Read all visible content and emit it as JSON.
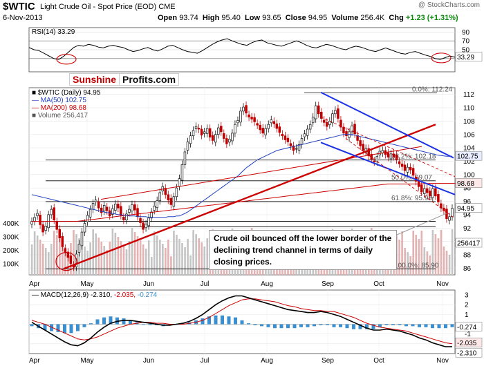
{
  "header": {
    "symbol": "$WTIC",
    "name": "Light Crude Oil - Spot Price (EOD)",
    "exchange": "CME",
    "date": "6-Nov-2013",
    "open_label": "Open",
    "open": "93.74",
    "high_label": "High",
    "high": "95.40",
    "low_label": "Low",
    "low": "93.65",
    "close_label": "Close",
    "close": "94.95",
    "volume_label": "Volume",
    "volume": "256.4K",
    "chg_label": "Chg",
    "chg": "+1.23 (+1.31%)",
    "brand": "@ StockCharts.com"
  },
  "logo": {
    "part1": "Sunshine",
    "part2": "Profits.com"
  },
  "callout": "Crude oil bounced off the lower border of the declining trend channel in terms of daily closing prices.",
  "colors": {
    "up": "#111111",
    "down": "#c00000",
    "ma50": "#1f3fbf",
    "ma200": "#cc0000",
    "trend_red": "#cc0000",
    "trend_blue": "#1a33e6",
    "volume": "#bbbbbb",
    "macd_hist": "#3a8fd0"
  },
  "chart_data": [
    {
      "type": "line",
      "title": "RSI(14) 33.29",
      "legend": "RSI(14) 33.29",
      "last_value": "33.29",
      "ylim": [
        0,
        100
      ],
      "y_ticks": [
        30,
        50,
        70,
        90
      ],
      "values": [
        55,
        50,
        48,
        42,
        36,
        30,
        28,
        35,
        45,
        55,
        60,
        58,
        62,
        60,
        56,
        54,
        58,
        60,
        57,
        55,
        50,
        46,
        48,
        52,
        55,
        50,
        47,
        52,
        58,
        60,
        55,
        50,
        46,
        44,
        42,
        48,
        55,
        62,
        68,
        72,
        75,
        70,
        66,
        62,
        60,
        66,
        70,
        72,
        66,
        63,
        60,
        58,
        62,
        66,
        70,
        66,
        60,
        56,
        54,
        58,
        62,
        60,
        56,
        52,
        50,
        55,
        58,
        56,
        52,
        48,
        46,
        50,
        54,
        50,
        46,
        42,
        40,
        44,
        46,
        42,
        38,
        35,
        30,
        28,
        32,
        36,
        33
      ]
    },
    {
      "type": "candlestick",
      "title": "$WTIC (Daily) 94.95",
      "legend": [
        {
          "name": "MA(50) 102.75",
          "color": "#1f3fbf"
        },
        {
          "name": "MA(200) 98.68",
          "color": "#cc0000"
        },
        {
          "name": "Volume 256,417",
          "color": "#888888"
        }
      ],
      "x_labels": [
        "Apr",
        "May",
        "Jun",
        "Jul",
        "Aug",
        "Sep",
        "Oct",
        "Nov"
      ],
      "ylim": [
        85,
        113
      ],
      "y_ticks": [
        86,
        88,
        90,
        92,
        94,
        96,
        98,
        100,
        102,
        104,
        106,
        108,
        110,
        112
      ],
      "value_badges": [
        {
          "label": "102.75",
          "value": 102.75
        },
        {
          "label": "98.68",
          "value": 98.68
        },
        {
          "label": "94.95",
          "value": 94.95
        }
      ],
      "volume_ticks": [
        "400K",
        "300K",
        "200K",
        "100K"
      ],
      "volume_last": "256417",
      "fib_levels": [
        {
          "label": "0.0%: 112.24",
          "value": 112.24
        },
        {
          "label": "38.2%: 102.18",
          "value": 102.18
        },
        {
          "label": "50.0%: 99.07",
          "value": 99.07
        },
        {
          "label": "61.8%: 95.96",
          "value": 95.96
        },
        {
          "label": "100.0%: 85.90",
          "value": 85.9
        }
      ],
      "close": [
        93.0,
        93.6,
        94.2,
        92.5,
        91.4,
        92.3,
        94.0,
        94.8,
        93.2,
        91.8,
        90.5,
        89.2,
        88.4,
        87.6,
        86.7,
        86.2,
        88.1,
        89.6,
        91.4,
        92.7,
        93.9,
        94.8,
        95.7,
        96.2,
        95.0,
        94.3,
        95.4,
        94.6,
        93.8,
        94.9,
        95.6,
        95.0,
        93.9,
        93.2,
        94.1,
        94.8,
        95.5,
        94.7,
        93.7,
        92.8,
        91.8,
        92.6,
        93.5,
        94.4,
        95.3,
        96.1,
        97.3,
        98.2,
        97.0,
        96.2,
        95.5,
        96.7,
        98.0,
        99.4,
        101.5,
        103.4,
        104.9,
        105.8,
        106.6,
        107.2,
        106.8,
        105.9,
        106.4,
        106.9,
        105.6,
        105.1,
        106.0,
        107.0,
        106.4,
        105.4,
        104.6,
        105.3,
        106.2,
        107.5,
        108.1,
        109.5,
        110.1,
        109.2,
        108.6,
        108.3,
        107.9,
        107.4,
        106.7,
        106.2,
        106.9,
        107.5,
        108.2,
        107.6,
        106.9,
        106.3,
        105.8,
        105.2,
        104.9,
        104.3,
        103.6,
        103.9,
        104.5,
        105.4,
        106.1,
        106.8,
        107.5,
        108.6,
        110.3,
        109.1,
        108.4,
        107.8,
        107.2,
        108.0,
        109.1,
        109.6,
        108.4,
        107.1,
        106.2,
        105.8,
        106.4,
        107.3,
        106.1,
        105.1,
        104.3,
        103.6,
        103.9,
        102.8,
        102.3,
        101.9,
        102.7,
        103.5,
        103.6,
        103.0,
        102.6,
        103.1,
        102.7,
        102.2,
        101.6,
        101.2,
        100.6,
        101.1,
        100.7,
        99.9,
        99.0,
        98.2,
        97.4,
        97.9,
        97.3,
        96.8,
        97.9,
        96.8,
        95.9,
        95.0,
        94.6,
        93.4,
        93.7,
        94.95
      ],
      "ma50": [
        97.0,
        96.9,
        96.8,
        96.7,
        96.6,
        96.5,
        96.4,
        96.3,
        96.2,
        96.1,
        96.0,
        95.9,
        95.8,
        95.7,
        95.6,
        95.5,
        95.4,
        95.3,
        95.2,
        95.1,
        95.0,
        94.9,
        94.8,
        94.7,
        94.6,
        94.5,
        94.4,
        94.3,
        94.3,
        94.2,
        94.1,
        94.0,
        94.0,
        93.9,
        93.9,
        93.8,
        93.8,
        93.8,
        93.7,
        93.7,
        93.7,
        93.7,
        93.6,
        93.6,
        93.6,
        93.6,
        93.6,
        93.6,
        93.6,
        93.7,
        93.7,
        93.7,
        93.8,
        93.8,
        94.0,
        94.2,
        94.4,
        94.7,
        95.0,
        95.3,
        95.6,
        95.9,
        96.2,
        96.5,
        96.8,
        97.1,
        97.4,
        97.7,
        98.0,
        98.3,
        98.6,
        98.9,
        99.2,
        99.5,
        99.8,
        100.2,
        100.6,
        101.0,
        101.3,
        101.6,
        101.9,
        102.2,
        102.4,
        102.6,
        102.8,
        103.0,
        103.2,
        103.4,
        103.6,
        103.7,
        103.8,
        103.9,
        104.0,
        104.1,
        104.2,
        104.3,
        104.4,
        104.5,
        104.6,
        104.7,
        104.8,
        104.9,
        105.0,
        105.1,
        105.2,
        105.3,
        105.4,
        105.5,
        105.6,
        105.7,
        105.8,
        105.9,
        106.0,
        106.0,
        106.0,
        106.0,
        105.9,
        105.8,
        105.7,
        105.6,
        105.5,
        105.4,
        105.3,
        105.2,
        105.1,
        105.0,
        104.9,
        104.8,
        104.7,
        104.6,
        104.5,
        104.4,
        104.3,
        104.2,
        104.1,
        104.0,
        103.9,
        103.8,
        103.7,
        103.6,
        103.5,
        103.4,
        103.3,
        103.2,
        103.1,
        103.0,
        102.9,
        102.85,
        102.8,
        102.75,
        102.75,
        102.75
      ],
      "ma200": [
        93.0,
        93.0,
        93.0,
        93.0,
        93.0,
        93.0,
        93.0,
        93.0,
        93.0,
        93.0,
        93.0,
        93.0,
        93.0,
        93.0,
        93.0,
        93.0,
        93.0,
        93.05,
        93.1,
        93.15,
        93.2,
        93.25,
        93.3,
        93.35,
        93.4,
        93.45,
        93.5,
        93.55,
        93.6,
        93.65,
        93.7,
        93.75,
        93.8,
        93.85,
        93.9,
        93.95,
        94.0,
        94.05,
        94.1,
        94.15,
        94.2,
        94.25,
        94.3,
        94.35,
        94.4,
        94.45,
        94.5,
        94.55,
        94.6,
        94.65,
        94.7,
        94.75,
        94.8,
        94.85,
        94.9,
        94.95,
        95.0,
        95.05,
        95.1,
        95.15,
        95.2,
        95.25,
        95.3,
        95.35,
        95.4,
        95.45,
        95.5,
        95.55,
        95.6,
        95.65,
        95.7,
        95.75,
        95.8,
        95.85,
        95.9,
        95.95,
        96.0,
        96.05,
        96.1,
        96.15,
        96.2,
        96.25,
        96.3,
        96.35,
        96.4,
        96.45,
        96.5,
        96.55,
        96.6,
        96.65,
        96.7,
        96.75,
        96.8,
        96.85,
        96.9,
        96.95,
        97.0,
        97.05,
        97.1,
        97.15,
        97.2,
        97.25,
        97.3,
        97.35,
        97.4,
        97.45,
        97.5,
        97.55,
        97.6,
        97.65,
        97.7,
        97.75,
        97.8,
        97.85,
        97.9,
        97.95,
        98.0,
        98.05,
        98.1,
        98.15,
        98.2,
        98.25,
        98.3,
        98.35,
        98.4,
        98.45,
        98.5,
        98.55,
        98.6,
        98.6,
        98.6,
        98.6,
        98.6,
        98.6,
        98.6,
        98.6,
        98.6,
        98.6,
        98.6,
        98.6,
        98.62,
        98.64,
        98.66,
        98.68,
        98.68,
        98.68,
        98.68,
        98.68,
        98.68,
        98.68,
        98.68,
        98.68,
        98.68,
        98.68,
        98.68
      ]
    },
    {
      "type": "line",
      "title": "MACD(12,26,9) -2.310, -2.035, -0.274",
      "legend": [
        {
          "name": "MACD(12,26,9)",
          "value": "-2.310",
          "color": "#000000"
        },
        {
          "name": "",
          "value": "-2.035",
          "color": "#cc0000"
        },
        {
          "name": "",
          "value": "-0.274",
          "color": "#3a8fd0"
        }
      ],
      "ylim": [
        -3,
        3.5
      ],
      "y_ticks": [
        -2,
        -1,
        0,
        1,
        2,
        3
      ],
      "value_badges": [
        {
          "label": "-0.274",
          "value": -0.274
        },
        {
          "label": "-2.035",
          "value": -2.035
        },
        {
          "label": "-2.310",
          "value": -2.31
        }
      ],
      "x_labels": [
        "Apr",
        "May",
        "Jun",
        "Jul",
        "Aug",
        "Sep",
        "Oct",
        "Nov"
      ],
      "macd": [
        0.2,
        -0.2,
        -0.6,
        -1.0,
        -1.4,
        -1.8,
        -2.1,
        -2.2,
        -1.9,
        -1.4,
        -0.8,
        -0.3,
        0.1,
        0.3,
        0.4,
        0.4,
        0.3,
        0.2,
        0.1,
        0.0,
        -0.1,
        -0.1,
        0.0,
        0.1,
        0.3,
        0.6,
        1.0,
        1.5,
        2.0,
        2.4,
        2.7,
        2.9,
        2.9,
        2.7,
        2.5,
        2.3,
        2.1,
        1.9,
        1.7,
        1.5,
        1.4,
        1.3,
        1.2,
        1.2,
        1.3,
        1.2,
        1.0,
        0.8,
        0.5,
        0.2,
        -0.1,
        -0.4,
        -0.6,
        -0.6,
        -0.5,
        -0.6,
        -0.7,
        -0.9,
        -1.1,
        -1.4,
        -1.6,
        -1.9,
        -2.1,
        -2.3,
        -2.3
      ],
      "signal": [
        0.4,
        0.2,
        0.0,
        -0.3,
        -0.6,
        -0.9,
        -1.2,
        -1.5,
        -1.6,
        -1.5,
        -1.3,
        -1.0,
        -0.7,
        -0.4,
        -0.2,
        0.0,
        0.1,
        0.2,
        0.2,
        0.1,
        0.1,
        0.0,
        0.0,
        0.0,
        0.1,
        0.2,
        0.4,
        0.7,
        1.1,
        1.5,
        1.9,
        2.2,
        2.5,
        2.6,
        2.6,
        2.5,
        2.4,
        2.3,
        2.1,
        1.9,
        1.8,
        1.6,
        1.5,
        1.4,
        1.4,
        1.3,
        1.3,
        1.1,
        0.9,
        0.7,
        0.4,
        0.1,
        -0.1,
        -0.3,
        -0.4,
        -0.5,
        -0.6,
        -0.7,
        -0.9,
        -1.1,
        -1.3,
        -1.5,
        -1.7,
        -1.9,
        -2.0
      ]
    }
  ]
}
